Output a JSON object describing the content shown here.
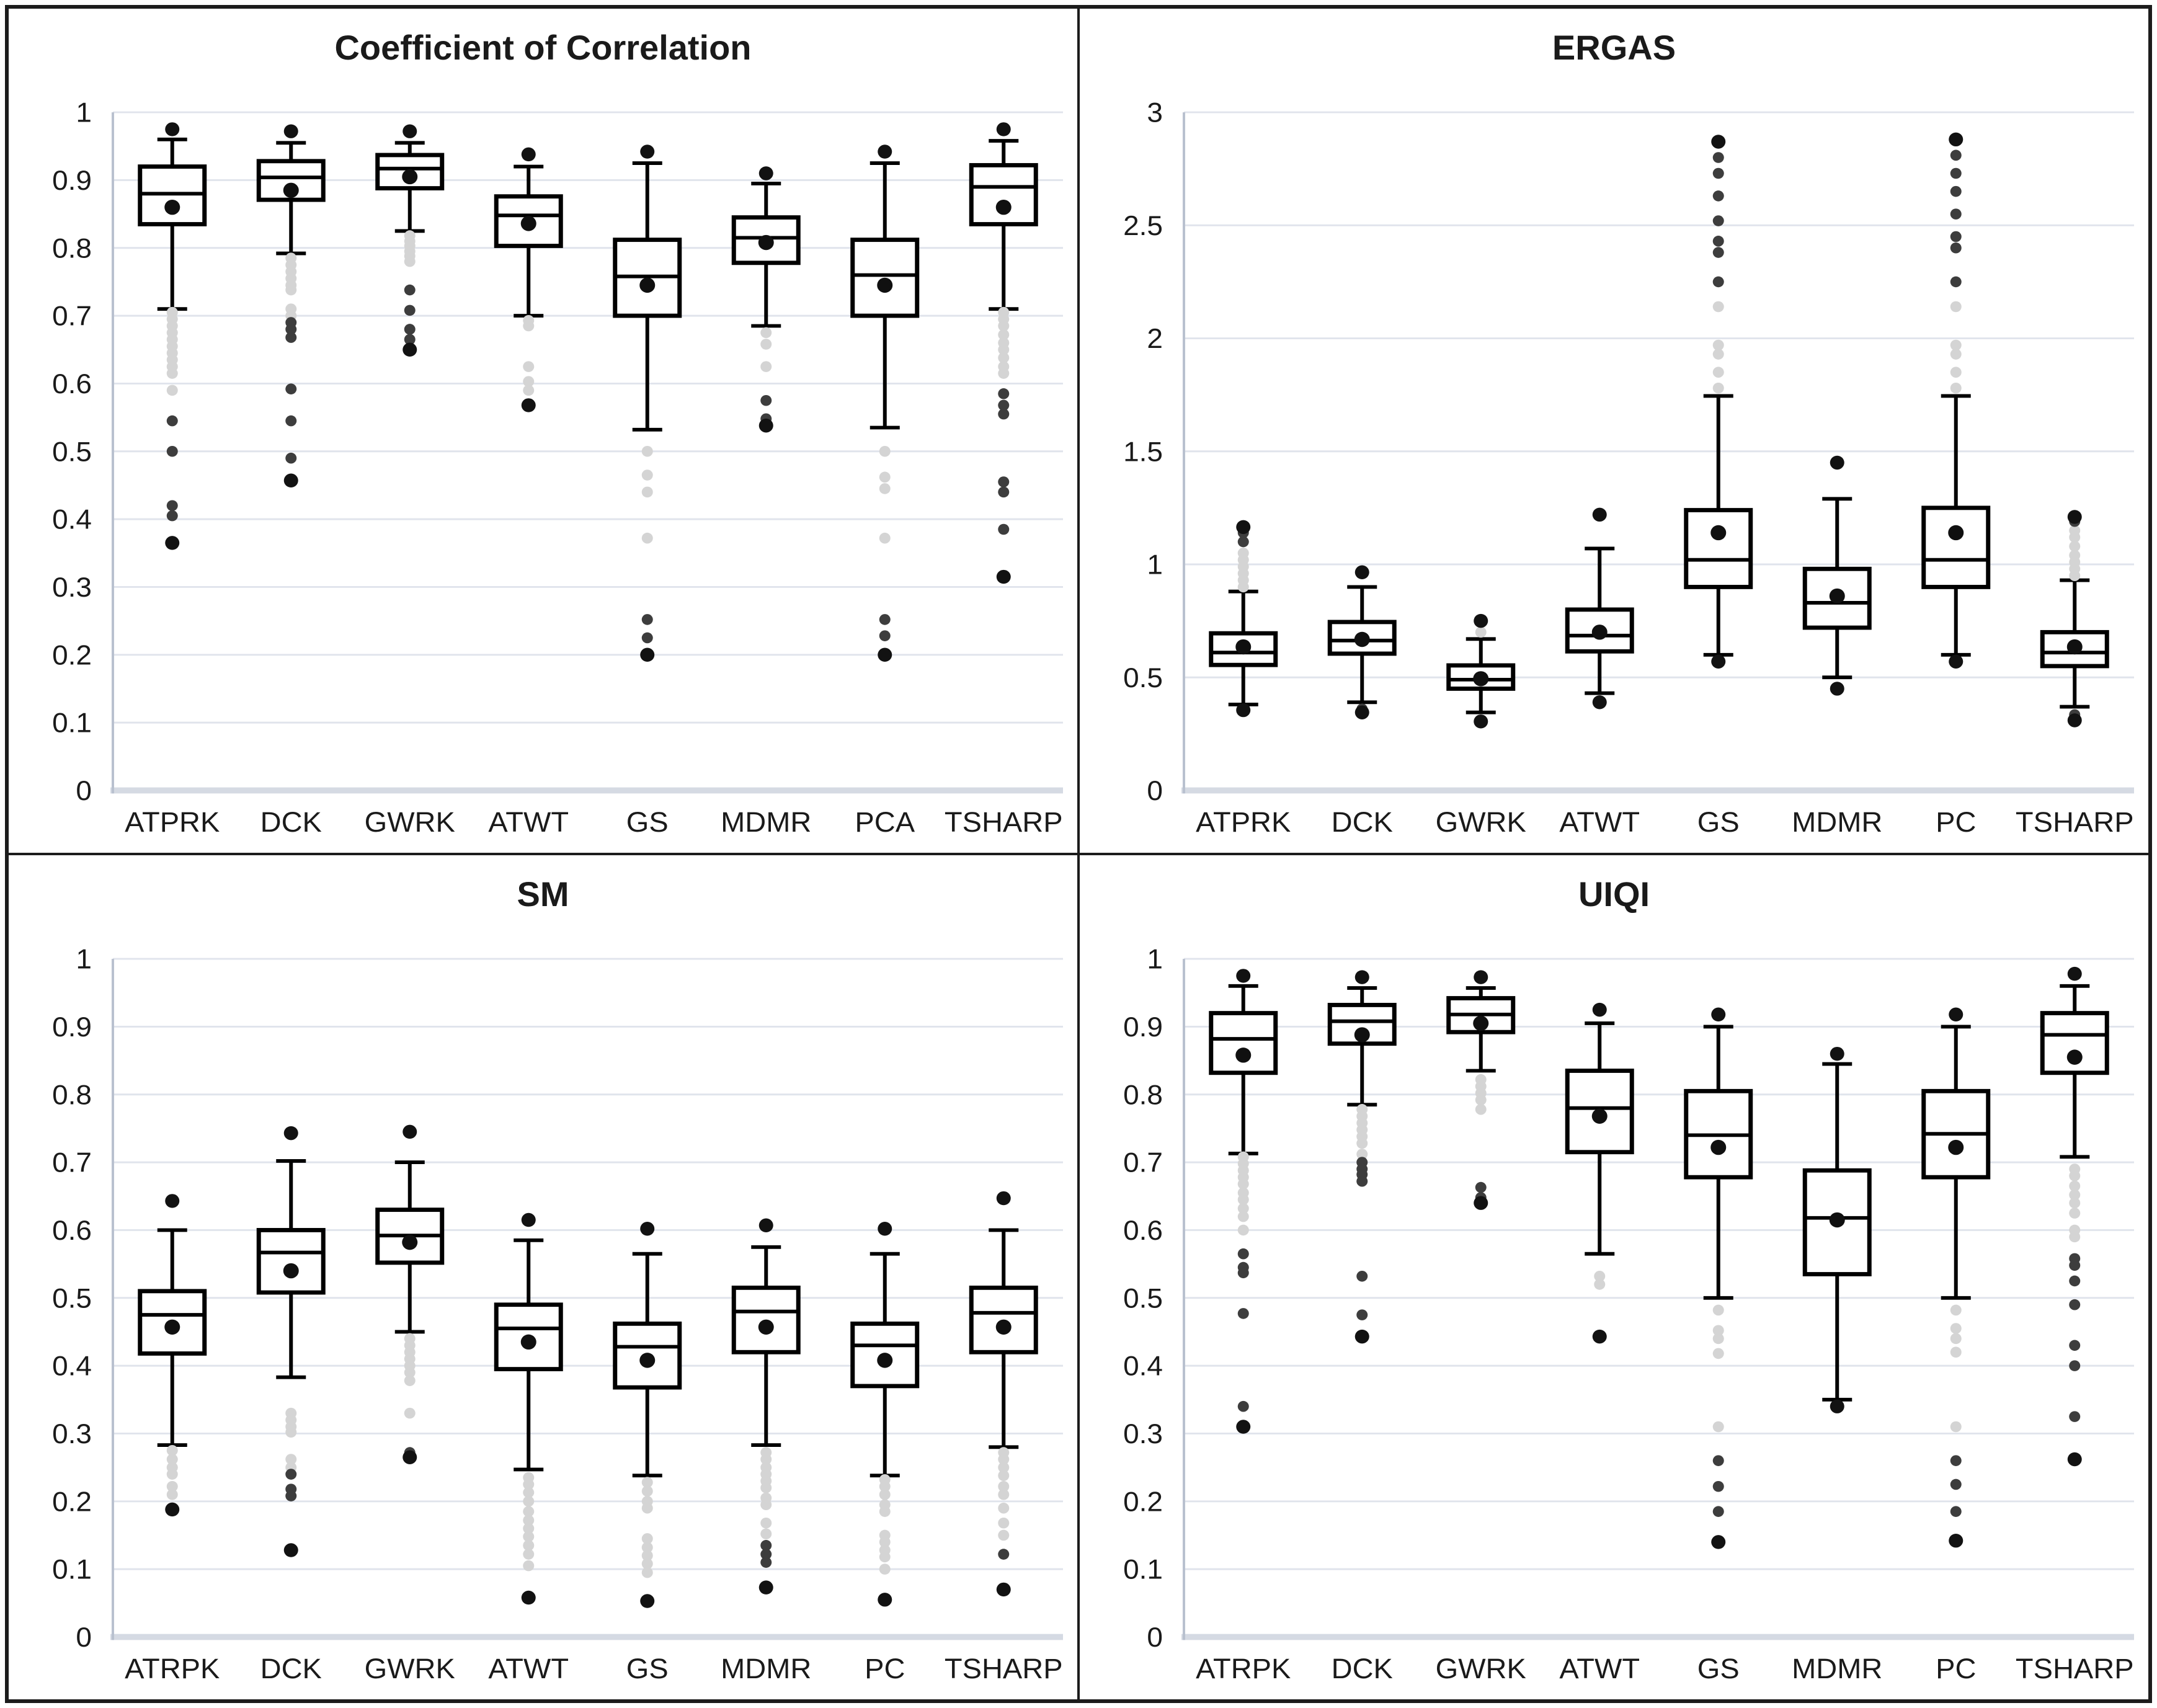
{
  "colors": {
    "text": "#1a1a1a",
    "box_stroke": "#000000",
    "box_fill": "#ffffff",
    "mean_dot": "#101010",
    "extreme_dot": "#121212",
    "outlier_dark": "#3d3d3d",
    "outlier_gray": "#d4d4d4",
    "gridline": "#e0e4ec",
    "axis_line": "#b9c1cf",
    "baseline": "#d5dae3",
    "panel_border": "#1c1c1c",
    "background": "#ffffff"
  },
  "layout": {
    "rows": 2,
    "cols": 2
  },
  "chart_data": [
    {
      "type": "boxplot",
      "title": "Coefficient of Correlation",
      "ylim": [
        0,
        1
      ],
      "ytick_step": 0.1,
      "ytick_labels": [
        "0",
        "0.1",
        "0.2",
        "0.3",
        "0.4",
        "0.5",
        "0.6",
        "0.7",
        "0.8",
        "0.9",
        "1"
      ],
      "grid": true,
      "categories": [
        "ATPRK",
        "DCK",
        "GWRK",
        "ATWT",
        "GS",
        "MDMR",
        "PCA",
        "TSHARP"
      ],
      "series": [
        {
          "label": "ATPRK",
          "whisker_low": 0.71,
          "q1": 0.835,
          "median": 0.88,
          "q3": 0.92,
          "whisker_high": 0.96,
          "mean": 0.86,
          "outliers_gray": [
            0.705,
            0.695,
            0.685,
            0.675,
            0.665,
            0.655,
            0.645,
            0.635,
            0.625,
            0.615,
            0.59
          ],
          "outliers_dark": [
            0.545,
            0.5,
            0.42,
            0.405
          ],
          "extremes": [
            0.975,
            0.365
          ]
        },
        {
          "label": "DCK",
          "whisker_low": 0.792,
          "q1": 0.871,
          "median": 0.904,
          "q3": 0.928,
          "whisker_high": 0.955,
          "mean": 0.885,
          "outliers_gray": [
            0.785,
            0.775,
            0.765,
            0.755,
            0.745,
            0.738,
            0.71,
            0.7
          ],
          "outliers_dark": [
            0.69,
            0.68,
            0.668,
            0.592,
            0.545,
            0.49
          ],
          "extremes": [
            0.972,
            0.457
          ]
        },
        {
          "label": "GWRK",
          "whisker_low": 0.825,
          "q1": 0.888,
          "median": 0.917,
          "q3": 0.937,
          "whisker_high": 0.955,
          "mean": 0.905,
          "outliers_gray": [
            0.818,
            0.81,
            0.803,
            0.795,
            0.788,
            0.78
          ],
          "outliers_dark": [
            0.738,
            0.708,
            0.68,
            0.665
          ],
          "extremes": [
            0.972,
            0.65
          ]
        },
        {
          "label": "ATWT",
          "whisker_low": 0.7,
          "q1": 0.803,
          "median": 0.848,
          "q3": 0.876,
          "whisker_high": 0.92,
          "mean": 0.836,
          "outliers_gray": [
            0.693,
            0.685,
            0.625,
            0.603,
            0.59
          ],
          "outliers_dark": [],
          "extremes": [
            0.938,
            0.568
          ]
        },
        {
          "label": "GS",
          "whisker_low": 0.532,
          "q1": 0.7,
          "median": 0.758,
          "q3": 0.812,
          "whisker_high": 0.925,
          "mean": 0.745,
          "outliers_gray": [
            0.5,
            0.465,
            0.44,
            0.372
          ],
          "outliers_dark": [
            0.252,
            0.225
          ],
          "extremes": [
            0.942,
            0.2
          ]
        },
        {
          "label": "MDMR",
          "whisker_low": 0.685,
          "q1": 0.778,
          "median": 0.815,
          "q3": 0.845,
          "whisker_high": 0.895,
          "mean": 0.808,
          "outliers_gray": [
            0.675,
            0.658,
            0.625
          ],
          "outliers_dark": [
            0.575,
            0.548
          ],
          "extremes": [
            0.91,
            0.538
          ]
        },
        {
          "label": "PCA",
          "whisker_low": 0.535,
          "q1": 0.7,
          "median": 0.76,
          "q3": 0.812,
          "whisker_high": 0.925,
          "mean": 0.745,
          "outliers_gray": [
            0.5,
            0.462,
            0.445,
            0.372
          ],
          "outliers_dark": [
            0.252,
            0.228
          ],
          "extremes": [
            0.942,
            0.2
          ]
        },
        {
          "label": "TSHARP",
          "whisker_low": 0.71,
          "q1": 0.835,
          "median": 0.89,
          "q3": 0.922,
          "whisker_high": 0.958,
          "mean": 0.86,
          "outliers_gray": [
            0.705,
            0.695,
            0.685,
            0.672,
            0.66,
            0.65,
            0.638,
            0.625,
            0.615
          ],
          "outliers_dark": [
            0.585,
            0.568,
            0.555,
            0.455,
            0.44,
            0.385
          ],
          "extremes": [
            0.975,
            0.315
          ]
        }
      ]
    },
    {
      "type": "boxplot",
      "title": "ERGAS",
      "ylim": [
        0,
        3
      ],
      "ytick_step": 0.5,
      "ytick_labels": [
        "0",
        "0.5",
        "1",
        "1.5",
        "2",
        "2.5",
        "3"
      ],
      "grid": true,
      "categories": [
        "ATPRK",
        "DCK",
        "GWRK",
        "ATWT",
        "GS",
        "MDMR",
        "PC",
        "TSHARP"
      ],
      "series": [
        {
          "label": "ATPRK",
          "whisker_low": 0.38,
          "q1": 0.555,
          "median": 0.61,
          "q3": 0.695,
          "whisker_high": 0.88,
          "mean": 0.635,
          "outliers_gray": [
            0.9,
            0.93,
            0.96,
            0.99,
            1.02,
            1.05
          ],
          "outliers_dark": [
            1.1,
            1.14
          ],
          "extremes": [
            1.165,
            0.355
          ]
        },
        {
          "label": "DCK",
          "whisker_low": 0.39,
          "q1": 0.605,
          "median": 0.663,
          "q3": 0.745,
          "whisker_high": 0.9,
          "mean": 0.668,
          "outliers_gray": [],
          "outliers_dark": [
            0.36
          ],
          "extremes": [
            0.965,
            0.345
          ]
        },
        {
          "label": "GWRK",
          "whisker_low": 0.345,
          "q1": 0.45,
          "median": 0.49,
          "q3": 0.553,
          "whisker_high": 0.67,
          "mean": 0.494,
          "outliers_gray": [
            0.7
          ],
          "outliers_dark": [],
          "extremes": [
            0.75,
            0.305
          ]
        },
        {
          "label": "ATWT",
          "whisker_low": 0.43,
          "q1": 0.615,
          "median": 0.685,
          "q3": 0.8,
          "whisker_high": 1.07,
          "mean": 0.7,
          "outliers_gray": [],
          "outliers_dark": [],
          "extremes": [
            1.22,
            0.39
          ]
        },
        {
          "label": "GS",
          "whisker_low": 0.6,
          "q1": 0.9,
          "median": 1.02,
          "q3": 1.24,
          "whisker_high": 1.745,
          "mean": 1.14,
          "outliers_gray": [
            1.78,
            1.85,
            1.93,
            1.97,
            2.14
          ],
          "outliers_dark": [
            2.25,
            2.38,
            2.43,
            2.52,
            2.63,
            2.73,
            2.8
          ],
          "extremes": [
            2.87,
            0.57
          ]
        },
        {
          "label": "MDMR",
          "whisker_low": 0.5,
          "q1": 0.72,
          "median": 0.83,
          "q3": 0.98,
          "whisker_high": 1.29,
          "mean": 0.86,
          "outliers_gray": [],
          "outliers_dark": [],
          "extremes": [
            1.45,
            0.45
          ]
        },
        {
          "label": "PC",
          "whisker_low": 0.6,
          "q1": 0.9,
          "median": 1.02,
          "q3": 1.25,
          "whisker_high": 1.745,
          "mean": 1.14,
          "outliers_gray": [
            1.78,
            1.85,
            1.93,
            1.97,
            2.14
          ],
          "outliers_dark": [
            2.25,
            2.4,
            2.45,
            2.55,
            2.65,
            2.73,
            2.81
          ],
          "extremes": [
            2.88,
            0.57
          ]
        },
        {
          "label": "TSHARP",
          "whisker_low": 0.37,
          "q1": 0.55,
          "median": 0.61,
          "q3": 0.7,
          "whisker_high": 0.93,
          "mean": 0.635,
          "outliers_gray": [
            0.95,
            0.98,
            1.01,
            1.04,
            1.08,
            1.12,
            1.15
          ],
          "outliers_dark": [
            1.19,
            0.335
          ],
          "extremes": [
            1.21,
            0.31
          ]
        }
      ]
    },
    {
      "type": "boxplot",
      "title": "SM",
      "ylim": [
        0,
        1
      ],
      "ytick_step": 0.1,
      "ytick_labels": [
        "0",
        "0.1",
        "0.2",
        "0.3",
        "0.4",
        "0.5",
        "0.6",
        "0.7",
        "0.8",
        "0.9",
        "1"
      ],
      "grid": true,
      "categories": [
        "ATRPK",
        "DCK",
        "GWRK",
        "ATWT",
        "GS",
        "MDMR",
        "PC",
        "TSHARP"
      ],
      "series": [
        {
          "label": "ATRPK",
          "whisker_low": 0.283,
          "q1": 0.418,
          "median": 0.475,
          "q3": 0.51,
          "whisker_high": 0.6,
          "mean": 0.457,
          "outliers_gray": [
            0.275,
            0.262,
            0.25,
            0.24,
            0.222,
            0.21
          ],
          "outliers_dark": [],
          "extremes": [
            0.643,
            0.188
          ]
        },
        {
          "label": "DCK",
          "whisker_low": 0.383,
          "q1": 0.508,
          "median": 0.567,
          "q3": 0.6,
          "whisker_high": 0.702,
          "mean": 0.54,
          "outliers_gray": [
            0.33,
            0.32,
            0.31,
            0.302,
            0.262,
            0.25
          ],
          "outliers_dark": [
            0.24,
            0.218,
            0.208
          ],
          "extremes": [
            0.743,
            0.128
          ]
        },
        {
          "label": "GWRK",
          "whisker_low": 0.45,
          "q1": 0.552,
          "median": 0.592,
          "q3": 0.63,
          "whisker_high": 0.7,
          "mean": 0.582,
          "outliers_gray": [
            0.44,
            0.43,
            0.42,
            0.41,
            0.4,
            0.39,
            0.378,
            0.33
          ],
          "outliers_dark": [
            0.272
          ],
          "extremes": [
            0.745,
            0.265
          ]
        },
        {
          "label": "ATWT",
          "whisker_low": 0.247,
          "q1": 0.395,
          "median": 0.455,
          "q3": 0.49,
          "whisker_high": 0.585,
          "mean": 0.435,
          "outliers_gray": [
            0.235,
            0.225,
            0.213,
            0.2,
            0.185,
            0.172,
            0.16,
            0.148,
            0.135,
            0.122,
            0.105
          ],
          "outliers_dark": [],
          "extremes": [
            0.615,
            0.058
          ]
        },
        {
          "label": "GS",
          "whisker_low": 0.238,
          "q1": 0.368,
          "median": 0.428,
          "q3": 0.462,
          "whisker_high": 0.565,
          "mean": 0.408,
          "outliers_gray": [
            0.228,
            0.215,
            0.2,
            0.19,
            0.145,
            0.132,
            0.12,
            0.108,
            0.095
          ],
          "outliers_dark": [],
          "extremes": [
            0.602,
            0.053
          ]
        },
        {
          "label": "MDMR",
          "whisker_low": 0.283,
          "q1": 0.42,
          "median": 0.48,
          "q3": 0.515,
          "whisker_high": 0.575,
          "mean": 0.457,
          "outliers_gray": [
            0.272,
            0.262,
            0.25,
            0.24,
            0.23,
            0.22,
            0.205,
            0.195,
            0.168,
            0.152
          ],
          "outliers_dark": [
            0.135,
            0.122,
            0.11
          ],
          "extremes": [
            0.607,
            0.073
          ]
        },
        {
          "label": "PC",
          "whisker_low": 0.238,
          "q1": 0.37,
          "median": 0.43,
          "q3": 0.462,
          "whisker_high": 0.565,
          "mean": 0.408,
          "outliers_gray": [
            0.232,
            0.222,
            0.21,
            0.195,
            0.185,
            0.15,
            0.14,
            0.128,
            0.118,
            0.1
          ],
          "outliers_dark": [],
          "extremes": [
            0.602,
            0.055
          ]
        },
        {
          "label": "TSHARP",
          "whisker_low": 0.28,
          "q1": 0.42,
          "median": 0.478,
          "q3": 0.515,
          "whisker_high": 0.6,
          "mean": 0.457,
          "outliers_gray": [
            0.272,
            0.262,
            0.25,
            0.238,
            0.222,
            0.21,
            0.19,
            0.168,
            0.15
          ],
          "outliers_dark": [
            0.122
          ],
          "extremes": [
            0.647,
            0.07
          ]
        }
      ]
    },
    {
      "type": "boxplot",
      "title": "UIQI",
      "ylim": [
        0,
        1
      ],
      "ytick_step": 0.1,
      "ytick_labels": [
        "0",
        "0.1",
        "0.2",
        "0.3",
        "0.4",
        "0.5",
        "0.6",
        "0.7",
        "0.8",
        "0.9",
        "1"
      ],
      "grid": true,
      "categories": [
        "ATRPK",
        "DCK",
        "GWRK",
        "ATWT",
        "GS",
        "MDMR",
        "PC",
        "TSHARP"
      ],
      "series": [
        {
          "label": "ATRPK",
          "whisker_low": 0.713,
          "q1": 0.832,
          "median": 0.882,
          "q3": 0.92,
          "whisker_high": 0.96,
          "mean": 0.858,
          "outliers_gray": [
            0.708,
            0.698,
            0.688,
            0.678,
            0.668,
            0.655,
            0.645,
            0.632,
            0.62,
            0.6
          ],
          "outliers_dark": [
            0.565,
            0.545,
            0.537,
            0.477,
            0.34
          ],
          "extremes": [
            0.975,
            0.31
          ]
        },
        {
          "label": "DCK",
          "whisker_low": 0.785,
          "q1": 0.875,
          "median": 0.908,
          "q3": 0.932,
          "whisker_high": 0.957,
          "mean": 0.888,
          "outliers_gray": [
            0.778,
            0.768,
            0.758,
            0.748,
            0.738,
            0.728,
            0.712
          ],
          "outliers_dark": [
            0.7,
            0.69,
            0.682,
            0.672,
            0.532,
            0.475
          ],
          "extremes": [
            0.973,
            0.443
          ]
        },
        {
          "label": "GWRK",
          "whisker_low": 0.835,
          "q1": 0.892,
          "median": 0.918,
          "q3": 0.942,
          "whisker_high": 0.957,
          "mean": 0.905,
          "outliers_gray": [
            0.822,
            0.812,
            0.802,
            0.792,
            0.778
          ],
          "outliers_dark": [
            0.663,
            0.648
          ],
          "extremes": [
            0.973,
            0.64
          ]
        },
        {
          "label": "ATWT",
          "whisker_low": 0.565,
          "q1": 0.715,
          "median": 0.78,
          "q3": 0.835,
          "whisker_high": 0.905,
          "mean": 0.768,
          "outliers_gray": [
            0.532,
            0.52
          ],
          "outliers_dark": [],
          "extremes": [
            0.925,
            0.443
          ]
        },
        {
          "label": "GS",
          "whisker_low": 0.5,
          "q1": 0.678,
          "median": 0.74,
          "q3": 0.805,
          "whisker_high": 0.9,
          "mean": 0.722,
          "outliers_gray": [
            0.482,
            0.452,
            0.44,
            0.418,
            0.31
          ],
          "outliers_dark": [
            0.26,
            0.222,
            0.185
          ],
          "extremes": [
            0.918,
            0.14
          ]
        },
        {
          "label": "MDMR",
          "whisker_low": 0.35,
          "q1": 0.535,
          "median": 0.618,
          "q3": 0.688,
          "whisker_high": 0.845,
          "mean": 0.615,
          "outliers_gray": [],
          "outliers_dark": [],
          "extremes": [
            0.86,
            0.34
          ]
        },
        {
          "label": "PC",
          "whisker_low": 0.5,
          "q1": 0.678,
          "median": 0.742,
          "q3": 0.805,
          "whisker_high": 0.9,
          "mean": 0.722,
          "outliers_gray": [
            0.482,
            0.455,
            0.44,
            0.42,
            0.31
          ],
          "outliers_dark": [
            0.26,
            0.225,
            0.185
          ],
          "extremes": [
            0.918,
            0.142
          ]
        },
        {
          "label": "TSHARP",
          "whisker_low": 0.708,
          "q1": 0.832,
          "median": 0.888,
          "q3": 0.92,
          "whisker_high": 0.96,
          "mean": 0.855,
          "outliers_gray": [
            0.69,
            0.68,
            0.665,
            0.652,
            0.64,
            0.625,
            0.6,
            0.59
          ],
          "outliers_dark": [
            0.558,
            0.548,
            0.525,
            0.49,
            0.43,
            0.4,
            0.325
          ],
          "extremes": [
            0.978,
            0.262
          ]
        }
      ]
    }
  ]
}
